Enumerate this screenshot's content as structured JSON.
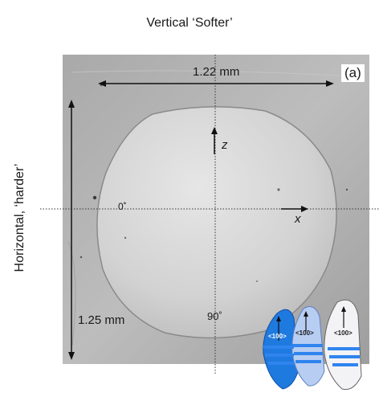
{
  "figure": {
    "top_label": "Vertical ‘Softer’",
    "side_label": "Horizontal, ‘harder’",
    "panel_label": "(a)",
    "width_dimension": "1.22 mm",
    "height_dimension": "1.25 mm",
    "axis_z": "z",
    "axis_x": "x",
    "angle_0": "0˚",
    "angle_90": "90˚",
    "grain_label": "<100>"
  }
}
